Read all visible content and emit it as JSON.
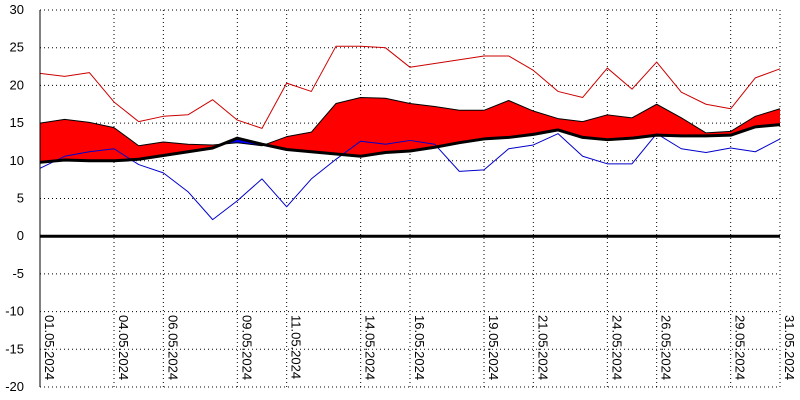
{
  "chart_data": {
    "type": "area",
    "ylim": [
      -20,
      30
    ],
    "ytick_labels": [
      "30",
      "25",
      "20",
      "15",
      "10",
      "5",
      "0",
      "-5",
      "-10",
      "-15",
      "-20"
    ],
    "ytick_values": [
      30,
      25,
      20,
      15,
      10,
      5,
      0,
      -5,
      -10,
      -15,
      -20
    ],
    "xtick_labels": [
      "01.05.2024",
      "04.05.2024",
      "06.05.2024",
      "09.05.2024",
      "11.05.2024",
      "14.05.2024",
      "16.05.2024",
      "19.05.2024",
      "21.05.2024",
      "24.05.2024",
      "26.05.2024",
      "29.05.2024",
      "31.05.2024"
    ],
    "xtick_days": [
      1,
      4,
      6,
      9,
      11,
      14,
      16,
      19,
      21,
      24,
      26,
      29,
      31
    ],
    "days": [
      1,
      2,
      3,
      4,
      5,
      6,
      7,
      8,
      9,
      10,
      11,
      12,
      13,
      14,
      15,
      16,
      17,
      18,
      19,
      20,
      21,
      22,
      23,
      24,
      25,
      26,
      27,
      28,
      29,
      30,
      31
    ],
    "grid": true,
    "colors": {
      "above_normal": "#ff0000",
      "below_normal": "#0000ff",
      "max_line": "#cc0000",
      "min_line": "#0000cc",
      "normal_line": "#000000",
      "zero_line": "#000000",
      "grid": "#000000"
    },
    "series": [
      {
        "key": "max",
        "values": [
          21.6,
          21.2,
          21.7,
          17.8,
          15.2,
          15.9,
          16.1,
          18.1,
          15.4,
          14.3,
          20.3,
          19.2,
          25.2,
          25.2,
          25.0,
          22.4,
          22.9,
          23.4,
          23.9,
          23.9,
          22.0,
          19.2,
          18.4,
          22.3,
          19.5,
          23.1,
          19.1,
          17.5,
          16.9,
          21.0,
          22.2
        ]
      },
      {
        "key": "mean",
        "values": [
          15.0,
          15.5,
          15.1,
          14.4,
          12.0,
          12.5,
          12.2,
          12.1,
          12.4,
          12.0,
          13.2,
          13.8,
          17.6,
          18.4,
          18.3,
          17.6,
          17.2,
          16.7,
          16.7,
          18.0,
          16.6,
          15.6,
          15.2,
          16.1,
          15.7,
          17.5,
          15.7,
          13.7,
          13.9,
          15.9,
          16.9
        ]
      },
      {
        "key": "normal",
        "values": [
          9.8,
          10.1,
          10.0,
          10.0,
          10.2,
          10.7,
          11.2,
          11.7,
          13.0,
          12.2,
          11.5,
          11.2,
          10.9,
          10.6,
          11.1,
          11.3,
          11.8,
          12.4,
          12.9,
          13.1,
          13.5,
          14.1,
          13.1,
          12.8,
          13.0,
          13.4,
          13.3,
          13.3,
          13.4,
          14.5,
          14.8
        ]
      },
      {
        "key": "min",
        "values": [
          9.0,
          10.6,
          11.2,
          11.6,
          9.5,
          8.4,
          5.9,
          2.2,
          4.7,
          7.6,
          3.9,
          7.6,
          10.2,
          12.6,
          12.2,
          12.7,
          12.2,
          8.6,
          8.8,
          11.6,
          12.1,
          13.6,
          10.6,
          9.6,
          9.6,
          13.6,
          11.6,
          11.1,
          11.7,
          11.2,
          12.9
        ]
      }
    ]
  }
}
